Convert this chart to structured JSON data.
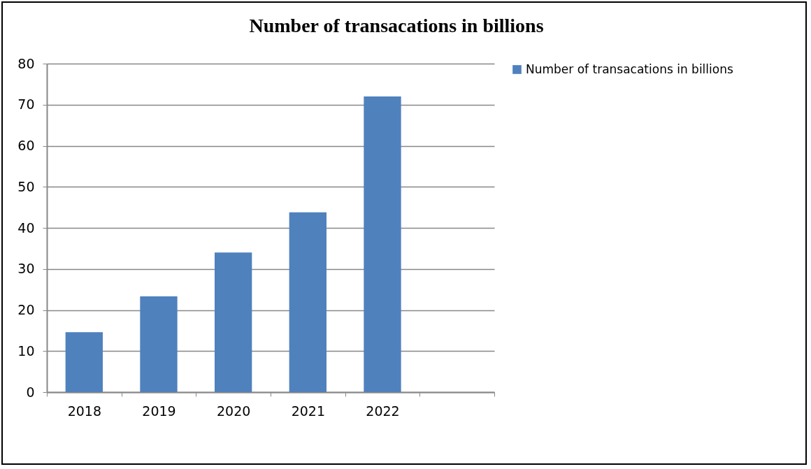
{
  "chart_data": {
    "type": "bar",
    "title": "Number of transacations in billions",
    "categories": [
      "2018",
      "2019",
      "2020",
      "2021",
      "2022",
      null
    ],
    "series": [
      {
        "name": "Number of transacations in billions",
        "color": "#4f81bd",
        "values": [
          14.6,
          23.3,
          34,
          43.8,
          72,
          null
        ]
      }
    ],
    "ylim": [
      0,
      80
    ],
    "yticks": [
      0,
      10,
      20,
      30,
      40,
      50,
      60,
      70,
      80
    ],
    "grid": "y",
    "legend": "right"
  }
}
